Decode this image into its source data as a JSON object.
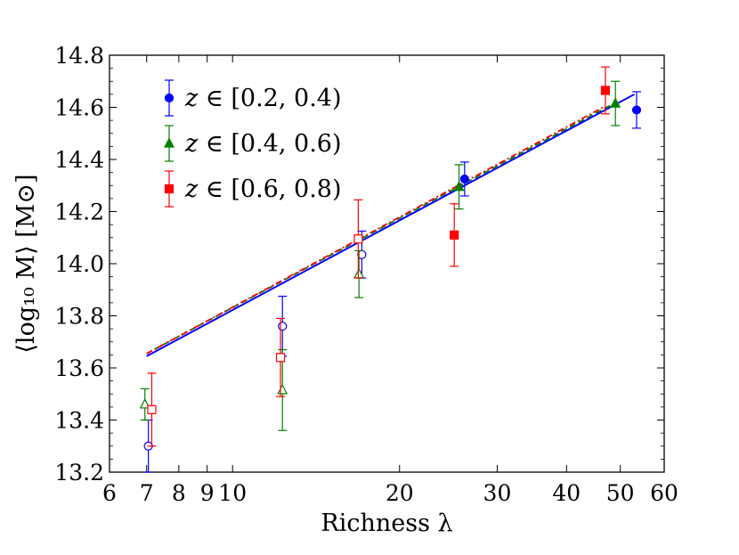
{
  "chart_data": {
    "type": "scatter",
    "x_scale": "log",
    "xlim": [
      6,
      60
    ],
    "ylim": [
      13.2,
      14.8
    ],
    "xlabel": "Richness λ",
    "ylabel": "⟨log₁₀ M⟩ [M⊙]",
    "xticks": [
      6,
      7,
      8,
      9,
      10,
      20,
      30,
      40,
      50,
      60
    ],
    "xtick_labels": [
      "6",
      "7",
      "8",
      "9",
      "10",
      "20",
      "30",
      "40",
      "50",
      "60"
    ],
    "yticks": [
      13.2,
      13.4,
      13.6,
      13.8,
      14.0,
      14.2,
      14.4,
      14.6,
      14.8
    ],
    "ytick_labels": [
      "13.2",
      "13.4",
      "13.6",
      "13.8",
      "14.0",
      "14.2",
      "14.4",
      "14.6",
      "14.8"
    ],
    "legend_position": "top-left",
    "series": [
      {
        "name": "z ∈ [0.2, 0.4)",
        "name_math": "z",
        "name_rest": " ∈ [0.2, 0.4)",
        "color": "#0000ff",
        "marker": "circle",
        "points": [
          {
            "x": 7.05,
            "y": 13.3,
            "err": 0.1,
            "filled": false
          },
          {
            "x": 12.3,
            "y": 13.76,
            "err": 0.115,
            "filled": false
          },
          {
            "x": 17.1,
            "y": 14.035,
            "err": 0.09,
            "filled": false
          },
          {
            "x": 26.2,
            "y": 14.325,
            "err": 0.065,
            "filled": true
          },
          {
            "x": 53.5,
            "y": 14.59,
            "err": 0.07,
            "filled": true
          }
        ],
        "fit": {
          "x": [
            7.0,
            53.0
          ],
          "y": [
            13.645,
            14.65
          ],
          "dash": "solid"
        }
      },
      {
        "name": "z ∈ [0.4, 0.6)",
        "name_math": "z",
        "name_rest": " ∈ [0.4, 0.6)",
        "color": "#008000",
        "marker": "triangle",
        "points": [
          {
            "x": 6.95,
            "y": 13.46,
            "err": 0.06,
            "filled": false
          },
          {
            "x": 12.3,
            "y": 13.515,
            "err": 0.155,
            "filled": false
          },
          {
            "x": 16.9,
            "y": 13.96,
            "err": 0.09,
            "filled": false
          },
          {
            "x": 25.6,
            "y": 14.295,
            "err": 0.085,
            "filled": true
          },
          {
            "x": 49.0,
            "y": 14.615,
            "err": 0.085,
            "filled": true
          }
        ],
        "fit": {
          "x": [
            7.0,
            49.0
          ],
          "y": [
            13.655,
            14.618
          ],
          "dash": "dashed"
        }
      },
      {
        "name": "z ∈ [0.6, 0.8)",
        "name_math": "z",
        "name_rest": " ∈ [0.6, 0.8)",
        "color": "#ff0000",
        "marker": "square",
        "points": [
          {
            "x": 7.15,
            "y": 13.44,
            "err": 0.14,
            "filled": false
          },
          {
            "x": 12.2,
            "y": 13.64,
            "err": 0.15,
            "filled": false
          },
          {
            "x": 16.85,
            "y": 14.095,
            "err": 0.15,
            "filled": false
          },
          {
            "x": 25.1,
            "y": 14.11,
            "err": 0.12,
            "filled": true
          },
          {
            "x": 47.0,
            "y": 14.665,
            "err": 0.09,
            "filled": true
          }
        ],
        "fit": {
          "x": [
            7.0,
            47.0
          ],
          "y": [
            13.655,
            14.605
          ],
          "dash": "dashdot"
        }
      }
    ]
  }
}
